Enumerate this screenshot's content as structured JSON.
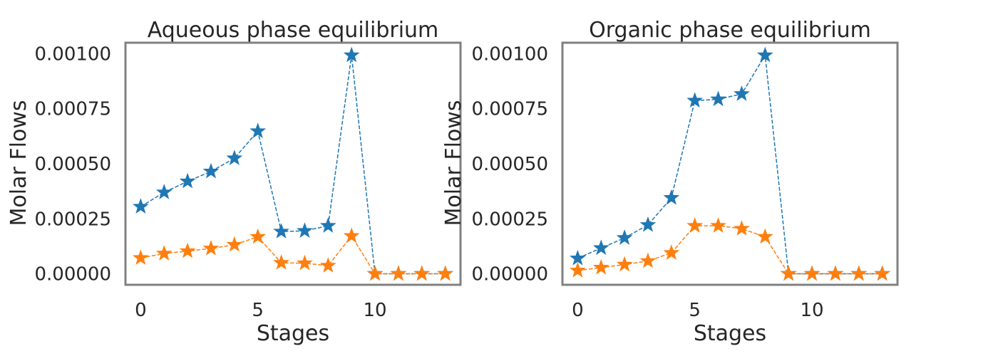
{
  "figure": {
    "colors": {
      "series_a": "#1f77b4",
      "series_b": "#ff7f0e",
      "frame": "#808080",
      "text": "#262626"
    }
  },
  "chart_data": [
    {
      "type": "line",
      "title": "Aqueous phase equilibrium",
      "xlabel": "Stages",
      "ylabel": "Molar Flows",
      "marker": "star",
      "linestyle": "dashed",
      "grid": false,
      "xlim": [
        -0.65,
        13.65
      ],
      "ylim": [
        -5e-05,
        0.00105
      ],
      "xticks": [
        0,
        5,
        10
      ],
      "xtick_labels": [
        "0",
        "5",
        "10"
      ],
      "yticks": [
        0,
        0.00025,
        0.0005,
        0.00075,
        0.001
      ],
      "ytick_labels": [
        "0.00000",
        "0.00025",
        "0.00050",
        "0.00075",
        "0.00100"
      ],
      "x": [
        0,
        1,
        2,
        3,
        4,
        5,
        6,
        7,
        8,
        9,
        10,
        11,
        12,
        13
      ],
      "series": [
        {
          "color": "#1f77b4",
          "values": [
            0.000305,
            0.00037,
            0.00042,
            0.000465,
            0.000525,
            0.000648,
            0.000192,
            0.000195,
            0.000218,
            0.000993,
            0.0,
            0.0,
            0.0,
            0.0
          ]
        },
        {
          "color": "#ff7f0e",
          "values": [
            7.2e-05,
            9.2e-05,
            0.000103,
            0.000115,
            0.000132,
            0.000168,
            5e-05,
            4.8e-05,
            3.7e-05,
            0.000172,
            0.0,
            0.0,
            0.0,
            0.0
          ]
        }
      ]
    },
    {
      "type": "line",
      "title": "Organic phase equilibrium",
      "xlabel": "Stages",
      "ylabel": "Molar Flows",
      "marker": "star",
      "linestyle": "dashed",
      "grid": false,
      "xlim": [
        -0.65,
        13.65
      ],
      "ylim": [
        -5e-05,
        0.00105
      ],
      "xticks": [
        0,
        5,
        10
      ],
      "xtick_labels": [
        "0",
        "5",
        "10"
      ],
      "yticks": [
        0,
        0.00025,
        0.0005,
        0.00075,
        0.001
      ],
      "ytick_labels": [
        "0.00000",
        "0.00025",
        "0.00050",
        "0.00075",
        "0.00100"
      ],
      "x": [
        0,
        1,
        2,
        3,
        4,
        5,
        6,
        7,
        8,
        9,
        10,
        11,
        12,
        13
      ],
      "series": [
        {
          "color": "#1f77b4",
          "values": [
            7e-05,
            0.000117,
            0.000163,
            0.000222,
            0.000345,
            0.000787,
            0.000793,
            0.000817,
            0.000993,
            0.0,
            0.0,
            0.0,
            0.0,
            0.0
          ]
        },
        {
          "color": "#ff7f0e",
          "values": [
            1.5e-05,
            2.8e-05,
            4.2e-05,
            5.8e-05,
            9.5e-05,
            0.000218,
            0.000218,
            0.000205,
            0.000168,
            0.0,
            0.0,
            0.0,
            0.0,
            0.0
          ]
        }
      ]
    }
  ]
}
